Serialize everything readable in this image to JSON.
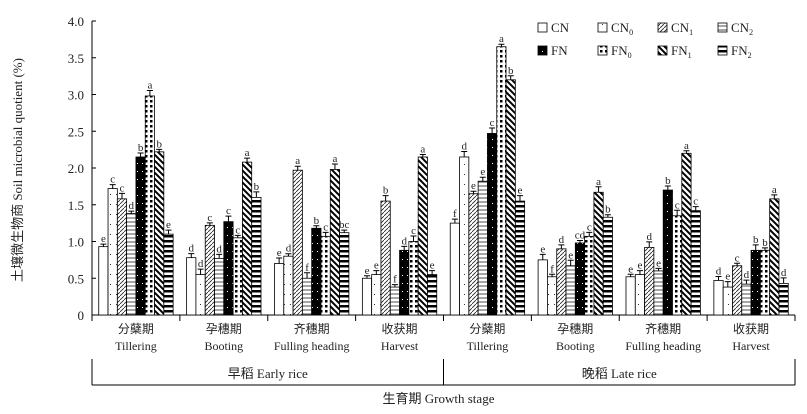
{
  "chart_data": {
    "type": "bar",
    "ylabel": "土壤微生物商 Soil microbial quotient (%)",
    "xlabel": "生育期 Growth stage",
    "ylim": [
      0,
      4.0
    ],
    "yticks": [
      "0",
      "0.5",
      "1.0",
      "1.5",
      "2.0",
      "2.5",
      "3.0",
      "3.5",
      "4.0"
    ],
    "legend_position": "top-right",
    "seasons": [
      "早稻 Early rice",
      "晚稻 Late rice"
    ],
    "categories": [
      {
        "cn": "分蘖期",
        "en": "Tillering"
      },
      {
        "cn": "孕穗期",
        "en": "Booting"
      },
      {
        "cn": "齐穗期",
        "en": "Fulling heading"
      },
      {
        "cn": "收获期",
        "en": "Harvest"
      },
      {
        "cn": "分蘖期",
        "en": "Tillering"
      },
      {
        "cn": "孕穗期",
        "en": "Booting"
      },
      {
        "cn": "齐穗期",
        "en": "Fulling heading"
      },
      {
        "cn": "收获期",
        "en": "Harvest"
      }
    ],
    "series": [
      {
        "name": "CN",
        "label": "CN",
        "sub": "",
        "values": [
          0.93,
          0.78,
          0.7,
          0.5,
          1.25,
          0.75,
          0.52,
          0.47
        ],
        "letters": [
          "e",
          "d",
          "e",
          "e",
          "f",
          "e",
          "e",
          "d"
        ]
      },
      {
        "name": "CN0",
        "label": "CN",
        "sub": "0",
        "values": [
          1.72,
          0.55,
          0.8,
          0.55,
          2.15,
          0.52,
          0.55,
          0.38
        ],
        "letters": [
          "c",
          "d",
          "d",
          "e",
          "d",
          "f",
          "e",
          "e"
        ]
      },
      {
        "name": "CN1",
        "label": "CN",
        "sub": "1",
        "values": [
          1.58,
          1.22,
          1.97,
          1.55,
          1.65,
          0.9,
          0.92,
          0.67
        ],
        "letters": [
          "c",
          "c",
          "a",
          "b",
          "e",
          "d",
          "d",
          "c"
        ]
      },
      {
        "name": "CN2",
        "label": "CN",
        "sub": "2",
        "values": [
          1.38,
          0.77,
          0.5,
          0.38,
          1.82,
          0.67,
          0.6,
          0.42
        ],
        "letters": [
          "d",
          "d",
          "f",
          "f",
          "e",
          "e",
          "e",
          "d"
        ]
      },
      {
        "name": "FN",
        "label": "FN",
        "sub": "",
        "values": [
          2.15,
          1.27,
          1.18,
          0.88,
          2.47,
          0.98,
          1.7,
          0.88
        ],
        "letters": [
          "b",
          "c",
          "b",
          "d",
          "c",
          "cd",
          "b",
          "b"
        ]
      },
      {
        "name": "FN0",
        "label": "FN",
        "sub": "0",
        "values": [
          2.98,
          1.05,
          1.07,
          1.0,
          3.65,
          1.07,
          1.35,
          0.88
        ],
        "letters": [
          "a",
          "c",
          "c",
          "c",
          "a",
          "c",
          "c",
          "b"
        ]
      },
      {
        "name": "FN1",
        "label": "FN",
        "sub": "1",
        "values": [
          2.22,
          2.08,
          1.98,
          2.15,
          3.2,
          1.67,
          2.2,
          1.58
        ],
        "letters": [
          "b",
          "a",
          "a",
          "a",
          "b",
          "a",
          "a",
          "a"
        ]
      },
      {
        "name": "FN2",
        "label": "FN",
        "sub": "2",
        "values": [
          1.1,
          1.6,
          1.12,
          0.55,
          1.55,
          1.33,
          1.42,
          0.43
        ],
        "letters": [
          "e",
          "b",
          "bc",
          "e",
          "e",
          "b",
          "c",
          "d"
        ]
      }
    ]
  }
}
